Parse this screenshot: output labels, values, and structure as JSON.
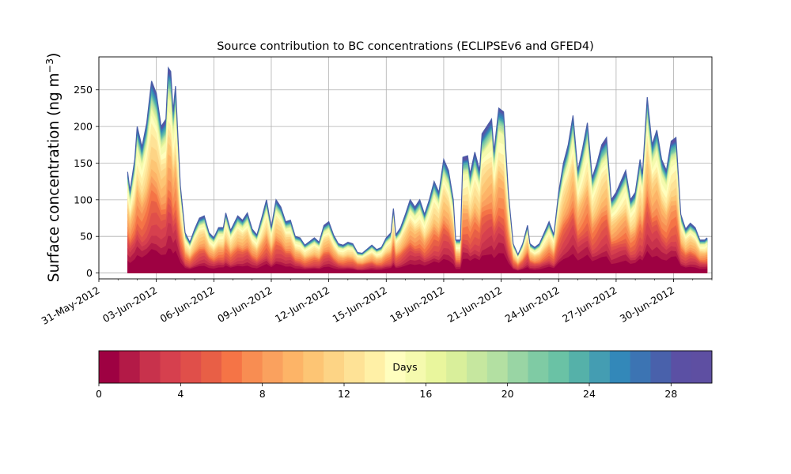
{
  "chart_data": {
    "type": "area",
    "stacked": true,
    "title": "Source contribution to BC concentrations (ECLIPSEv6 and GFED4)",
    "ylabel_main": "Surface concentration (ng m",
    "ylabel_exp": "−3",
    "ylabel_close": ")",
    "xlabel": "",
    "x_start": "2012-06-01T12:00",
    "x_step_hours": 3,
    "xlim": [
      "2012-05-31T00:00",
      "2012-07-02T00:00"
    ],
    "ylim": [
      -8,
      295
    ],
    "yticks": [
      0,
      50,
      100,
      150,
      200,
      250
    ],
    "xtick_labels": [
      "31-May-2012",
      "03-Jun-2012",
      "06-Jun-2012",
      "09-Jun-2012",
      "12-Jun-2012",
      "15-Jun-2012",
      "18-Jun-2012",
      "21-Jun-2012",
      "24-Jun-2012",
      "27-Jun-2012",
      "30-Jun-2012"
    ],
    "xtick_dates": [
      "2012-05-31",
      "2012-06-03",
      "2012-06-06",
      "2012-06-09",
      "2012-06-12",
      "2012-06-15",
      "2012-06-18",
      "2012-06-21",
      "2012-06-24",
      "2012-06-27",
      "2012-06-30"
    ],
    "grid": true,
    "total": {
      "name": "total",
      "key_points": [
        [
          "2012-06-01T12:00",
          138
        ],
        [
          "2012-06-01T15:00",
          112
        ],
        [
          "2012-06-01T21:00",
          155
        ],
        [
          "2012-06-02T00:00",
          200
        ],
        [
          "2012-06-02T06:00",
          172
        ],
        [
          "2012-06-02T12:00",
          205
        ],
        [
          "2012-06-02T18:00",
          262
        ],
        [
          "2012-06-03T00:00",
          245
        ],
        [
          "2012-06-03T06:00",
          200
        ],
        [
          "2012-06-03T12:00",
          210
        ],
        [
          "2012-06-03T15:00",
          280
        ],
        [
          "2012-06-03T18:00",
          275
        ],
        [
          "2012-06-03T21:00",
          220
        ],
        [
          "2012-06-04T00:00",
          255
        ],
        [
          "2012-06-04T06:00",
          120
        ],
        [
          "2012-06-04T12:00",
          55
        ],
        [
          "2012-06-04T18:00",
          42
        ],
        [
          "2012-06-05T00:00",
          60
        ],
        [
          "2012-06-05T06:00",
          75
        ],
        [
          "2012-06-05T12:00",
          78
        ],
        [
          "2012-06-05T18:00",
          55
        ],
        [
          "2012-06-06T00:00",
          48
        ],
        [
          "2012-06-06T06:00",
          62
        ],
        [
          "2012-06-06T12:00",
          62
        ],
        [
          "2012-06-06T15:00",
          82
        ],
        [
          "2012-06-06T21:00",
          58
        ],
        [
          "2012-06-07T06:00",
          78
        ],
        [
          "2012-06-07T12:00",
          72
        ],
        [
          "2012-06-07T18:00",
          82
        ],
        [
          "2012-06-08T00:00",
          60
        ],
        [
          "2012-06-08T06:00",
          52
        ],
        [
          "2012-06-08T12:00",
          75
        ],
        [
          "2012-06-08T18:00",
          100
        ],
        [
          "2012-06-09T00:00",
          62
        ],
        [
          "2012-06-09T06:00",
          100
        ],
        [
          "2012-06-09T12:00",
          90
        ],
        [
          "2012-06-09T18:00",
          70
        ],
        [
          "2012-06-10T00:00",
          72
        ],
        [
          "2012-06-10T06:00",
          50
        ],
        [
          "2012-06-10T12:00",
          48
        ],
        [
          "2012-06-10T18:00",
          38
        ],
        [
          "2012-06-11T06:00",
          48
        ],
        [
          "2012-06-11T12:00",
          42
        ],
        [
          "2012-06-11T18:00",
          65
        ],
        [
          "2012-06-12T00:00",
          70
        ],
        [
          "2012-06-12T06:00",
          52
        ],
        [
          "2012-06-12T12:00",
          40
        ],
        [
          "2012-06-12T18:00",
          38
        ],
        [
          "2012-06-13T00:00",
          42
        ],
        [
          "2012-06-13T06:00",
          40
        ],
        [
          "2012-06-13T12:00",
          28
        ],
        [
          "2012-06-13T18:00",
          27
        ],
        [
          "2012-06-14T06:00",
          38
        ],
        [
          "2012-06-14T12:00",
          32
        ],
        [
          "2012-06-14T18:00",
          35
        ],
        [
          "2012-06-15T00:00",
          48
        ],
        [
          "2012-06-15T06:00",
          55
        ],
        [
          "2012-06-15T09:00",
          88
        ],
        [
          "2012-06-15T12:00",
          52
        ],
        [
          "2012-06-15T18:00",
          62
        ],
        [
          "2012-06-16T00:00",
          80
        ],
        [
          "2012-06-16T06:00",
          100
        ],
        [
          "2012-06-16T12:00",
          90
        ],
        [
          "2012-06-16T18:00",
          100
        ],
        [
          "2012-06-17T00:00",
          80
        ],
        [
          "2012-06-17T06:00",
          100
        ],
        [
          "2012-06-17T12:00",
          125
        ],
        [
          "2012-06-17T18:00",
          110
        ],
        [
          "2012-06-18T00:00",
          155
        ],
        [
          "2012-06-18T06:00",
          140
        ],
        [
          "2012-06-18T12:00",
          100
        ],
        [
          "2012-06-18T15:00",
          45
        ],
        [
          "2012-06-18T21:00",
          45
        ],
        [
          "2012-06-19T00:00",
          158
        ],
        [
          "2012-06-19T06:00",
          160
        ],
        [
          "2012-06-19T09:00",
          135
        ],
        [
          "2012-06-19T15:00",
          165
        ],
        [
          "2012-06-19T21:00",
          140
        ],
        [
          "2012-06-20T00:00",
          190
        ],
        [
          "2012-06-20T06:00",
          200
        ],
        [
          "2012-06-20T12:00",
          210
        ],
        [
          "2012-06-20T15:00",
          165
        ],
        [
          "2012-06-20T21:00",
          225
        ],
        [
          "2012-06-21T03:00",
          220
        ],
        [
          "2012-06-21T09:00",
          110
        ],
        [
          "2012-06-21T15:00",
          40
        ],
        [
          "2012-06-21T21:00",
          25
        ],
        [
          "2012-06-22T03:00",
          40
        ],
        [
          "2012-06-22T09:00",
          65
        ],
        [
          "2012-06-22T12:00",
          40
        ],
        [
          "2012-06-22T18:00",
          35
        ],
        [
          "2012-06-23T00:00",
          40
        ],
        [
          "2012-06-23T06:00",
          55
        ],
        [
          "2012-06-23T12:00",
          70
        ],
        [
          "2012-06-23T18:00",
          52
        ],
        [
          "2012-06-24T00:00",
          110
        ],
        [
          "2012-06-24T06:00",
          150
        ],
        [
          "2012-06-24T12:00",
          175
        ],
        [
          "2012-06-24T18:00",
          215
        ],
        [
          "2012-06-25T00:00",
          140
        ],
        [
          "2012-06-25T06:00",
          170
        ],
        [
          "2012-06-25T12:00",
          205
        ],
        [
          "2012-06-25T18:00",
          130
        ],
        [
          "2012-06-26T00:00",
          150
        ],
        [
          "2012-06-26T06:00",
          175
        ],
        [
          "2012-06-26T12:00",
          185
        ],
        [
          "2012-06-26T18:00",
          100
        ],
        [
          "2012-06-27T00:00",
          110
        ],
        [
          "2012-06-27T06:00",
          125
        ],
        [
          "2012-06-27T12:00",
          140
        ],
        [
          "2012-06-27T18:00",
          100
        ],
        [
          "2012-06-28T00:00",
          110
        ],
        [
          "2012-06-28T06:00",
          155
        ],
        [
          "2012-06-28T09:00",
          135
        ],
        [
          "2012-06-28T15:00",
          240
        ],
        [
          "2012-06-28T21:00",
          175
        ],
        [
          "2012-06-29T03:00",
          195
        ],
        [
          "2012-06-29T09:00",
          155
        ],
        [
          "2012-06-29T15:00",
          140
        ],
        [
          "2012-06-29T21:00",
          180
        ],
        [
          "2012-06-30T03:00",
          185
        ],
        [
          "2012-06-30T09:00",
          80
        ],
        [
          "2012-06-30T15:00",
          60
        ],
        [
          "2012-06-30T21:00",
          68
        ],
        [
          "2012-07-01T03:00",
          62
        ],
        [
          "2012-07-01T09:00",
          45
        ],
        [
          "2012-07-01T15:00",
          45
        ],
        [
          "2012-07-01T18:00",
          48
        ]
      ],
      "base_share": 0.25
    },
    "colorbar": {
      "label": "Days",
      "min": 0,
      "max": 30,
      "n_bins": 30,
      "ticks": [
        0,
        4,
        8,
        12,
        16,
        20,
        24,
        28
      ],
      "colormap": "Spectral",
      "colors": [
        "#9e0142",
        "#b31a47",
        "#c8324c",
        "#d6404e",
        "#e04f4a",
        "#e85f46",
        "#f57446",
        "#f88d52",
        "#faa15e",
        "#fdb467",
        "#fdc574",
        "#fdd485",
        "#fee296",
        "#fff0a6",
        "#fffebe",
        "#f5faae",
        "#e9f69d",
        "#d9ef9b",
        "#c6e79f",
        "#b3e0a2",
        "#99d5a4",
        "#7fcba4",
        "#6ac2a5",
        "#55b1a9",
        "#449db2",
        "#3388b9",
        "#3c74b3",
        "#4961ab",
        "#5b50a4",
        "#5e4fa2"
      ]
    }
  }
}
